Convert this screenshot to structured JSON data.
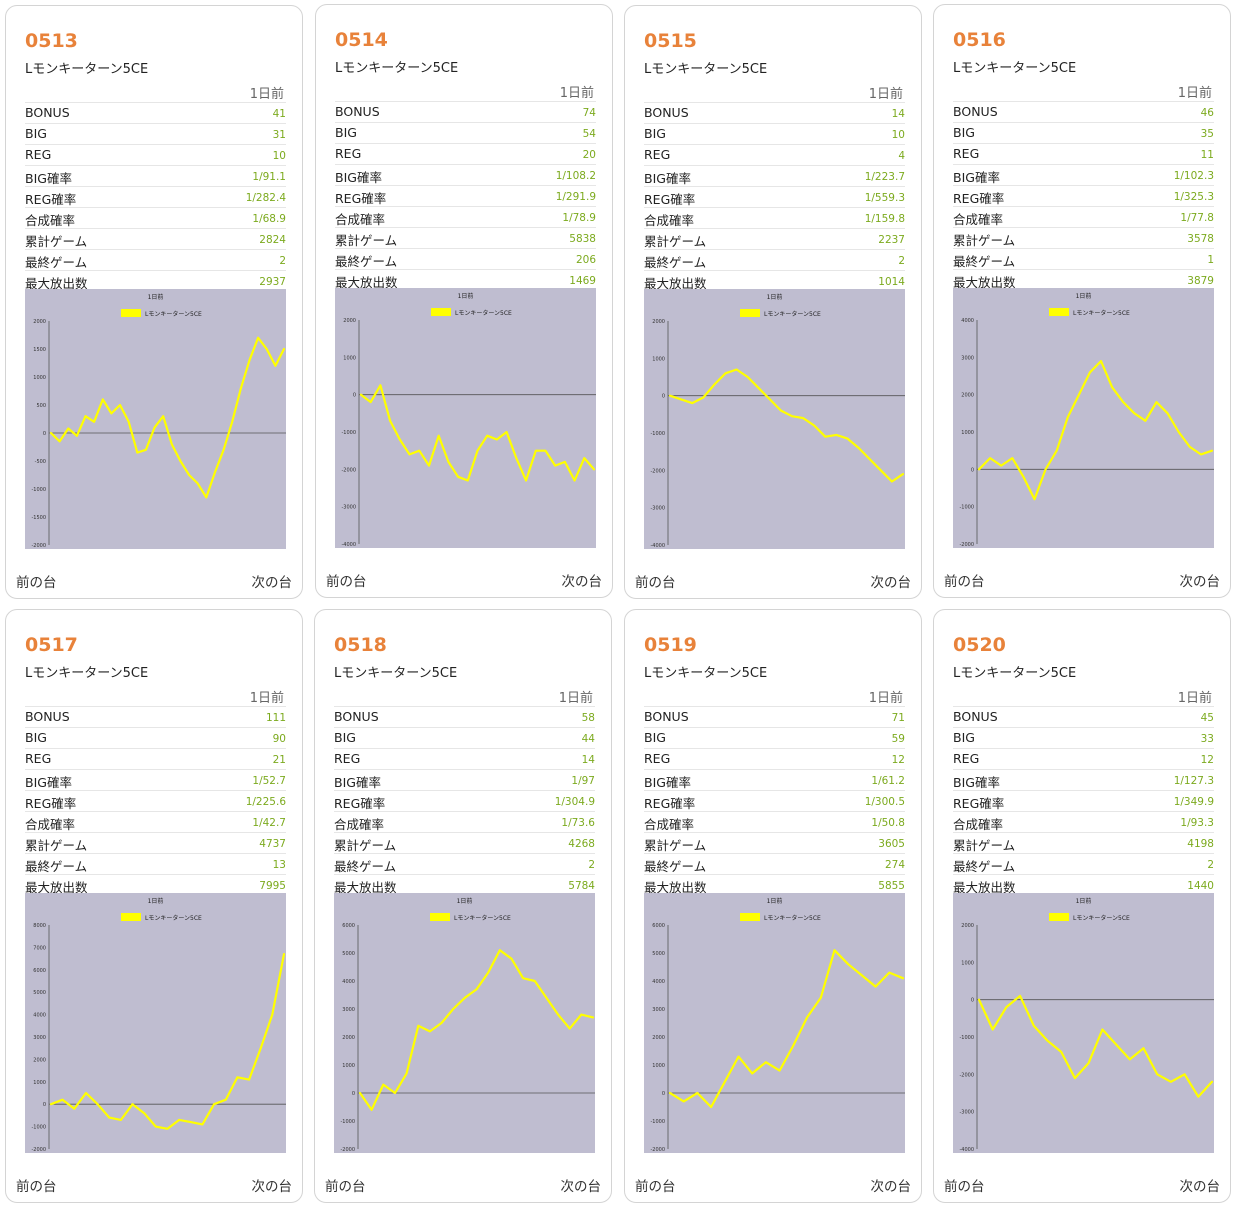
{
  "day_label": "1日前",
  "nav": {
    "prev": "前の台",
    "next": "次の台"
  },
  "row_labels": [
    "BONUS",
    "BIG",
    "REG",
    "BIG確率",
    "REG確率",
    "合成確率",
    "累計ゲーム",
    "最終ゲーム",
    "最大放出数"
  ],
  "colors": {
    "accent": "#e8823a",
    "value": "#7caa1e",
    "plot_bg": "#bfbdd0",
    "line": "#ffff00"
  },
  "machines": [
    {
      "number": "0513",
      "model": "Lモンキーターン5CE",
      "values": [
        "41",
        "31",
        "10",
        "1/91.1",
        "1/282.4",
        "1/68.9",
        "2824",
        "2",
        "2937"
      ]
    },
    {
      "number": "0514",
      "model": "Lモンキーターン5CE",
      "values": [
        "74",
        "54",
        "20",
        "1/108.2",
        "1/291.9",
        "1/78.9",
        "5838",
        "206",
        "1469"
      ]
    },
    {
      "number": "0515",
      "model": "Lモンキーターン5CE",
      "values": [
        "14",
        "10",
        "4",
        "1/223.7",
        "1/559.3",
        "1/159.8",
        "2237",
        "2",
        "1014"
      ]
    },
    {
      "number": "0516",
      "model": "Lモンキーターン5CE",
      "values": [
        "46",
        "35",
        "11",
        "1/102.3",
        "1/325.3",
        "1/77.8",
        "3578",
        "1",
        "3879"
      ]
    },
    {
      "number": "0517",
      "model": "Lモンキーターン5CE",
      "values": [
        "111",
        "90",
        "21",
        "1/52.7",
        "1/225.6",
        "1/42.7",
        "4737",
        "13",
        "7995"
      ]
    },
    {
      "number": "0518",
      "model": "Lモンキーターン5CE",
      "values": [
        "58",
        "44",
        "14",
        "1/97",
        "1/304.9",
        "1/73.6",
        "4268",
        "2",
        "5784"
      ]
    },
    {
      "number": "0519",
      "model": "Lモンキーターン5CE",
      "values": [
        "71",
        "59",
        "12",
        "1/61.2",
        "1/300.5",
        "1/50.8",
        "3605",
        "274",
        "5855"
      ]
    },
    {
      "number": "0520",
      "model": "Lモンキーターン5CE",
      "values": [
        "45",
        "33",
        "12",
        "1/127.3",
        "1/349.9",
        "1/93.3",
        "4198",
        "2",
        "1440"
      ]
    }
  ],
  "chart_data": [
    {
      "type": "line",
      "title": "1日前",
      "series": [
        {
          "name": "Lモンキーターン5CE"
        }
      ],
      "ylim": [
        -2000,
        2000
      ],
      "yticks": [
        2000,
        1500,
        1000,
        500,
        0,
        -500,
        -1000,
        -1500,
        -2000
      ],
      "y": [
        0,
        -150,
        80,
        -50,
        300,
        200,
        600,
        350,
        500,
        200,
        -350,
        -300,
        100,
        300,
        -200,
        -500,
        -750,
        -900,
        -1150,
        -700,
        -300,
        200,
        800,
        1300,
        1700,
        1500,
        1200,
        1500
      ]
    },
    {
      "type": "line",
      "title": "1日前",
      "series": [
        {
          "name": "Lモンキーターン5CE"
        }
      ],
      "ylim": [
        -4000,
        2000
      ],
      "yticks": [
        2000,
        1000,
        0,
        -1000,
        -2000,
        -3000,
        -4000
      ],
      "y": [
        0,
        -200,
        250,
        -700,
        -1200,
        -1600,
        -1500,
        -1900,
        -1100,
        -1800,
        -2200,
        -2300,
        -1500,
        -1100,
        -1200,
        -1000,
        -1700,
        -2300,
        -1500,
        -1500,
        -1900,
        -1800,
        -2300,
        -1700,
        -2000
      ]
    },
    {
      "type": "line",
      "title": "1日前",
      "series": [
        {
          "name": "Lモンキーターン5CE"
        }
      ],
      "ylim": [
        -4000,
        2000
      ],
      "yticks": [
        2000,
        1000,
        0,
        -1000,
        -2000,
        -3000,
        -4000
      ],
      "y": [
        0,
        -100,
        -200,
        -50,
        300,
        600,
        700,
        500,
        200,
        -100,
        -400,
        -550,
        -600,
        -800,
        -1100,
        -1050,
        -1150,
        -1400,
        -1700,
        -2000,
        -2300,
        -2100
      ]
    },
    {
      "type": "line",
      "title": "1日前",
      "series": [
        {
          "name": "Lモンキーターン5CE"
        }
      ],
      "ylim": [
        -2000,
        4000
      ],
      "yticks": [
        4000,
        3000,
        2000,
        1000,
        0,
        -1000,
        -2000
      ],
      "y": [
        0,
        300,
        100,
        300,
        -200,
        -800,
        0,
        500,
        1400,
        2000,
        2600,
        2900,
        2200,
        1800,
        1500,
        1300,
        1800,
        1500,
        1000,
        600,
        400,
        500
      ]
    },
    {
      "type": "line",
      "title": "1日前",
      "series": [
        {
          "name": "Lモンキーターン5CE"
        }
      ],
      "ylim": [
        -2000,
        8000
      ],
      "yticks": [
        8000,
        7000,
        6000,
        5000,
        4000,
        3000,
        2000,
        1000,
        0,
        -1000,
        -2000
      ],
      "y": [
        0,
        200,
        -200,
        500,
        0,
        -600,
        -700,
        0,
        -400,
        -1000,
        -1100,
        -700,
        -800,
        -900,
        0,
        200,
        1200,
        1100,
        2500,
        4000,
        6700
      ]
    },
    {
      "type": "line",
      "title": "1日前",
      "series": [
        {
          "name": "Lモンキーターン5CE"
        }
      ],
      "ylim": [
        -2000,
        6000
      ],
      "yticks": [
        6000,
        5000,
        4000,
        3000,
        2000,
        1000,
        0,
        -1000,
        -2000
      ],
      "y": [
        0,
        -600,
        300,
        0,
        700,
        2400,
        2200,
        2500,
        3000,
        3400,
        3700,
        4300,
        5100,
        4800,
        4100,
        4000,
        3400,
        2800,
        2300,
        2800,
        2700
      ]
    },
    {
      "type": "line",
      "title": "1日前",
      "series": [
        {
          "name": "Lモンキーターン5CE"
        }
      ],
      "ylim": [
        -2000,
        6000
      ],
      "yticks": [
        6000,
        5000,
        4000,
        3000,
        2000,
        1000,
        0,
        -1000,
        -2000
      ],
      "y": [
        0,
        -300,
        0,
        -500,
        400,
        1300,
        700,
        1100,
        800,
        1700,
        2700,
        3400,
        5100,
        4600,
        4200,
        3800,
        4300,
        4100
      ]
    },
    {
      "type": "line",
      "title": "1日前",
      "series": [
        {
          "name": "Lモンキーターン5CE"
        }
      ],
      "ylim": [
        -4000,
        2000
      ],
      "yticks": [
        2000,
        1000,
        0,
        -1000,
        -2000,
        -3000,
        -4000
      ],
      "y": [
        0,
        -800,
        -200,
        100,
        -700,
        -1100,
        -1400,
        -2100,
        -1700,
        -800,
        -1200,
        -1600,
        -1300,
        -2000,
        -2200,
        -2000,
        -2600,
        -2200
      ]
    }
  ]
}
